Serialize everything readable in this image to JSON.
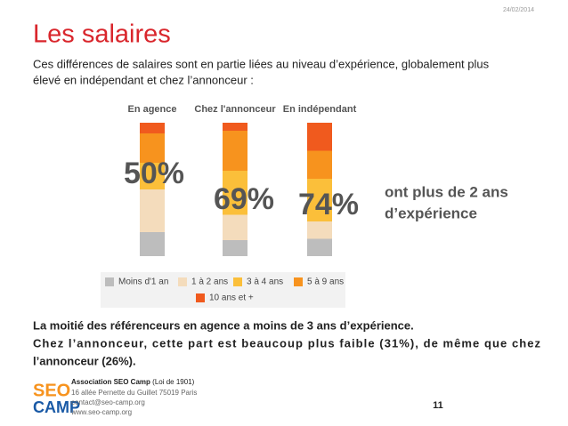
{
  "header": {
    "date": "24/02/2014",
    "title": "Les salaires",
    "intro": [
      "Ces différences de salaires sont en partie liées au niveau d’expérience, globalement plus",
      "élevé en indépendant et chez l’annonceur :"
    ]
  },
  "chart_data": {
    "type": "stacked-bar",
    "categories": [
      "En agence",
      "Chez l'annonceur",
      "En indépendant"
    ],
    "series": [
      {
        "name": "Moins d'1 an",
        "color": "#bdbdbd",
        "values": [
          18,
          12,
          13
        ]
      },
      {
        "name": "1 à 2 ans",
        "color": "#f4dcbc",
        "values": [
          32,
          19,
          13
        ]
      },
      {
        "name": "3 à 4 ans",
        "color": "#fbbf3a",
        "values": [
          20,
          33,
          32
        ]
      },
      {
        "name": "5 à 9 ans",
        "color": "#f7931e",
        "values": [
          22,
          30,
          21
        ]
      },
      {
        "name": "10 ans et +",
        "color": "#f05a1e",
        "values": [
          8,
          6,
          21
        ]
      }
    ],
    "annotations": [
      "50%",
      "69%",
      "74%"
    ],
    "note": [
      "ont plus de 2 ans",
      "d’expérience"
    ]
  },
  "body": [
    "La moitié des référenceurs en agence a moins de 3 ans d’expérience.",
    "Chez l’annonceur, cette part est beaucoup plus faible (31%), de même que chez",
    "l’annonceur (26%)."
  ],
  "footer": {
    "logo": [
      "SEO",
      "CAMP"
    ],
    "org": "Association SEO Camp",
    "org_note": "(Loi de 1901)",
    "lines": [
      "16 allée Pernette du Guillet 75019 Paris",
      "contact@seo-camp.org",
      "www.seo-camp.org"
    ],
    "page": "11"
  }
}
